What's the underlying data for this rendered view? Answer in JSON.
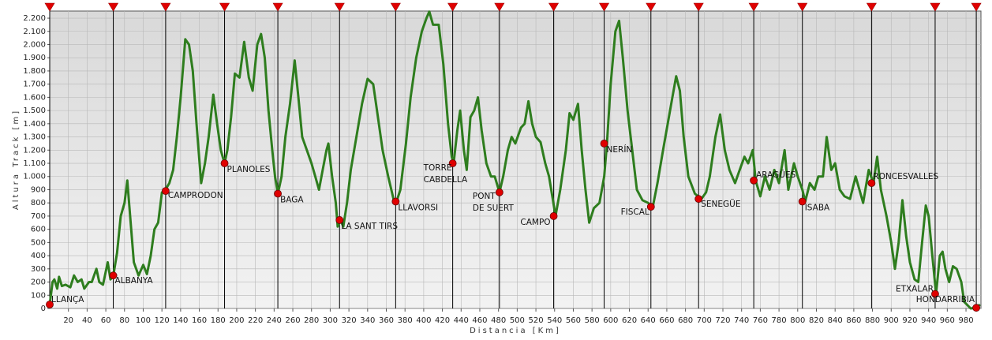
{
  "chart_data": {
    "type": "line",
    "x_label": "Distancia [Km]",
    "y_label": "Altura Track [m]",
    "xlim": [
      0,
      996
    ],
    "ylim": [
      0,
      2254
    ],
    "xticks": [
      20,
      40,
      60,
      80,
      100,
      120,
      140,
      160,
      180,
      200,
      220,
      240,
      260,
      280,
      300,
      320,
      340,
      360,
      380,
      400,
      420,
      440,
      460,
      480,
      500,
      520,
      540,
      560,
      580,
      600,
      620,
      640,
      660,
      680,
      700,
      720,
      740,
      760,
      780,
      800,
      820,
      840,
      860,
      880,
      900,
      920,
      940,
      960,
      980
    ],
    "yticks": [
      0,
      100,
      200,
      300,
      400,
      500,
      600,
      700,
      800,
      900,
      {
        "value": 1000,
        "label": "1.000"
      },
      {
        "value": 1100,
        "label": "1.100"
      },
      {
        "value": 1200,
        "label": "1.200"
      },
      {
        "value": 1300,
        "label": "1.300"
      },
      {
        "value": 1400,
        "label": "1.400"
      },
      {
        "value": 1500,
        "label": "1.500"
      },
      {
        "value": 1600,
        "label": "1.600"
      },
      {
        "value": 1700,
        "label": "1.700"
      },
      {
        "value": 1800,
        "label": "1.800"
      },
      {
        "value": 1900,
        "label": "1.900"
      },
      {
        "value": 2000,
        "label": "2.000"
      },
      {
        "value": 2100,
        "label": "2.100"
      },
      {
        "value": 2200,
        "label": "2.200"
      }
    ],
    "grid": true,
    "x": [
      0,
      3,
      5,
      8,
      10,
      13,
      17,
      22,
      26,
      30,
      34,
      37,
      42,
      45,
      50,
      53,
      57,
      62,
      65,
      68,
      72,
      76,
      80,
      83,
      86,
      90,
      95,
      100,
      104,
      108,
      112,
      116,
      120,
      123,
      128,
      132,
      136,
      140,
      145,
      149,
      153,
      157,
      162,
      166,
      170,
      175,
      179,
      183,
      187,
      190,
      194,
      198,
      203,
      208,
      213,
      217,
      222,
      226,
      230,
      234,
      238,
      241,
      244,
      248,
      252,
      257,
      262,
      266,
      270,
      275,
      280,
      284,
      288,
      292,
      296,
      298,
      302,
      306,
      308,
      311,
      314,
      318,
      322,
      328,
      334,
      340,
      346,
      350,
      356,
      362,
      368,
      371,
      375,
      381,
      386,
      392,
      398,
      403,
      406,
      410,
      416,
      421,
      426,
      430,
      432,
      436,
      439,
      443,
      446,
      450,
      454,
      458,
      462,
      467,
      472,
      476,
      481,
      485,
      490,
      494,
      498,
      504,
      508,
      512,
      516,
      520,
      525,
      530,
      534,
      538,
      541,
      546,
      552,
      556,
      560,
      565,
      569,
      573,
      577,
      582,
      588,
      593,
      596,
      600,
      605,
      609,
      613,
      618,
      623,
      628,
      634,
      640,
      645,
      650,
      656,
      661,
      666,
      670,
      674,
      678,
      683,
      690,
      697,
      702,
      706,
      712,
      717,
      722,
      727,
      733,
      738,
      743,
      747,
      752,
      755,
      760,
      765,
      770,
      775,
      780,
      786,
      790,
      796,
      800,
      805,
      808,
      813,
      818,
      822,
      827,
      831,
      836,
      840,
      845,
      850,
      856,
      862,
      866,
      870,
      876,
      881,
      885,
      889,
      895,
      900,
      904,
      908,
      912,
      916,
      920,
      925,
      929,
      933,
      937,
      940,
      944,
      948,
      952,
      955,
      958,
      962,
      966,
      970,
      975,
      978,
      985,
      991,
      995
    ],
    "series": [
      {
        "color": "#2e7d1e",
        "values": [
          30,
          200,
          220,
          150,
          240,
          170,
          180,
          160,
          250,
          200,
          220,
          150,
          200,
          200,
          300,
          200,
          180,
          350,
          220,
          250,
          420,
          700,
          800,
          970,
          700,
          350,
          250,
          330,
          260,
          400,
          600,
          650,
          880,
          890,
          950,
          1050,
          1300,
          1600,
          2040,
          2000,
          1800,
          1400,
          950,
          1100,
          1300,
          1620,
          1400,
          1200,
          1100,
          1200,
          1450,
          1780,
          1750,
          2020,
          1750,
          1650,
          2000,
          2080,
          1900,
          1500,
          1200,
          1000,
          870,
          1000,
          1300,
          1550,
          1880,
          1600,
          1300,
          1200,
          1100,
          1000,
          900,
          1050,
          1200,
          1250,
          1000,
          800,
          620,
          670,
          620,
          800,
          1050,
          1300,
          1550,
          1740,
          1700,
          1500,
          1200,
          1000,
          820,
          810,
          900,
          1250,
          1600,
          1900,
          2100,
          2200,
          2250,
          2150,
          2150,
          1850,
          1400,
          1150,
          1100,
          1350,
          1500,
          1200,
          1050,
          1450,
          1500,
          1600,
          1350,
          1100,
          1000,
          1000,
          880,
          1000,
          1200,
          1300,
          1250,
          1370,
          1400,
          1570,
          1400,
          1300,
          1260,
          1100,
          1000,
          830,
          700,
          900,
          1200,
          1480,
          1430,
          1550,
          1200,
          900,
          650,
          760,
          800,
          1000,
          1250,
          1700,
          2100,
          2180,
          1900,
          1500,
          1200,
          900,
          820,
          800,
          770,
          950,
          1200,
          1400,
          1600,
          1760,
          1650,
          1300,
          1000,
          870,
          830,
          880,
          1000,
          1300,
          1470,
          1200,
          1050,
          950,
          1050,
          1150,
          1100,
          1200,
          970,
          850,
          1000,
          900,
          1050,
          950,
          1200,
          900,
          1100,
          1000,
          900,
          810,
          950,
          900,
          1000,
          1000,
          1300,
          1050,
          1100,
          900,
          850,
          830,
          1000,
          900,
          800,
          1050,
          950,
          1150,
          900,
          700,
          500,
          300,
          500,
          820,
          550,
          350,
          220,
          200,
          500,
          780,
          700,
          400,
          110,
          400,
          430,
          300,
          200,
          320,
          300,
          200,
          50,
          0,
          5,
          30
        ]
      }
    ],
    "waypoints": [
      {
        "lines": [
          "LLANÇA"
        ],
        "km": 0,
        "altitude": 30
      },
      {
        "lines": [
          "ALBANYA"
        ],
        "km": 68,
        "altitude": 250
      },
      {
        "lines": [
          "CAMPRODON"
        ],
        "km": 124,
        "altitude": 890
      },
      {
        "lines": [
          "PLANOLES"
        ],
        "km": 187,
        "altitude": 1100
      },
      {
        "lines": [
          "BAGA"
        ],
        "km": 244,
        "altitude": 870
      },
      {
        "lines": [
          "LA SANT TIRS"
        ],
        "km": 310,
        "altitude": 670
      },
      {
        "lines": [
          "LLAVORSI"
        ],
        "km": 370,
        "altitude": 810
      },
      {
        "lines": [
          "TORRE",
          "CABDELLA"
        ],
        "km": 431,
        "altitude": 1100
      },
      {
        "lines": [
          "PONT",
          "DE SUERT"
        ],
        "km": 481,
        "altitude": 880
      },
      {
        "lines": [
          "CAMPO"
        ],
        "km": 539,
        "altitude": 700
      },
      {
        "lines": [
          "NERÍN"
        ],
        "km": 593,
        "altitude": 1250
      },
      {
        "lines": [
          "FISCAL"
        ],
        "km": 643,
        "altitude": 770
      },
      {
        "lines": [
          "SENEGÜE"
        ],
        "km": 694,
        "altitude": 830
      },
      {
        "lines": [
          "ARAGÜES"
        ],
        "km": 753,
        "altitude": 970
      },
      {
        "lines": [
          "ISABA"
        ],
        "km": 805,
        "altitude": 810
      },
      {
        "lines": [
          "RONCESVALLES"
        ],
        "km": 879,
        "altitude": 950
      },
      {
        "lines": [
          "ETXALAR"
        ],
        "km": 947,
        "altitude": 110
      },
      {
        "lines": [
          "HONDARRIBIA"
        ],
        "km": 991,
        "altitude": 5
      }
    ]
  }
}
